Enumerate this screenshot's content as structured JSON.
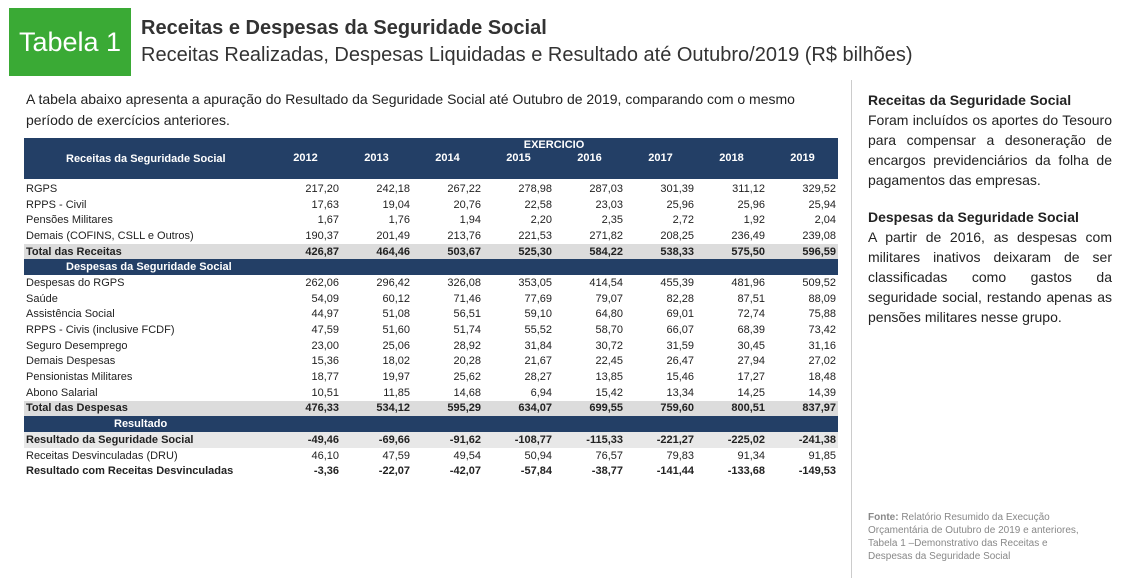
{
  "header": {
    "badge": "Tabela 1",
    "title": "Receitas e Despesas da Seguridade Social",
    "subtitle": "Receitas Realizadas, Despesas Liquidadas e Resultado até Outubro/2019 (R$ bilhões)"
  },
  "intro": "A tabela abaixo apresenta a apuração do Resultado da Seguridade Social até Outubro de 2019, comparando com o mesmo período de exercícios anteriores.",
  "table": {
    "header_label": "Receitas da Seguridade Social",
    "group_label": "EXERCICIO",
    "years": [
      "2012",
      "2013",
      "2014",
      "2015",
      "2016",
      "2017",
      "2018",
      "2019"
    ],
    "sections": [
      {
        "rows": [
          {
            "label": "RGPS",
            "values": [
              "217,20",
              "242,18",
              "267,22",
              "278,98",
              "287,03",
              "301,39",
              "311,12",
              "329,52"
            ]
          },
          {
            "label": "RPPS - Civil",
            "values": [
              "17,63",
              "19,04",
              "20,76",
              "22,58",
              "23,03",
              "25,96",
              "25,96",
              "25,94"
            ]
          },
          {
            "label": "Pensões Militares",
            "values": [
              "1,67",
              "1,76",
              "1,94",
              "2,20",
              "2,35",
              "2,72",
              "1,92",
              "2,04"
            ]
          },
          {
            "label": "Demais (COFINS, CSLL e Outros)",
            "values": [
              "190,37",
              "201,49",
              "213,76",
              "221,53",
              "271,82",
              "208,25",
              "236,49",
              "239,08"
            ]
          }
        ],
        "total": {
          "label": "Total das Receitas",
          "values": [
            "426,87",
            "464,46",
            "503,67",
            "525,30",
            "584,22",
            "538,33",
            "575,50",
            "596,59"
          ]
        }
      },
      {
        "title": "Despesas da Seguridade Social",
        "rows": [
          {
            "label": "Despesas do RGPS",
            "values": [
              "262,06",
              "296,42",
              "326,08",
              "353,05",
              "414,54",
              "455,39",
              "481,96",
              "509,52"
            ]
          },
          {
            "label": "Saúde",
            "values": [
              "54,09",
              "60,12",
              "71,46",
              "77,69",
              "79,07",
              "82,28",
              "87,51",
              "88,09"
            ]
          },
          {
            "label": "Assistência Social",
            "values": [
              "44,97",
              "51,08",
              "56,51",
              "59,10",
              "64,80",
              "69,01",
              "72,74",
              "75,88"
            ]
          },
          {
            "label": "RPPS - Civis (inclusive FCDF)",
            "values": [
              "47,59",
              "51,60",
              "51,74",
              "55,52",
              "58,70",
              "66,07",
              "68,39",
              "73,42"
            ]
          },
          {
            "label": "Seguro Desemprego",
            "values": [
              "23,00",
              "25,06",
              "28,92",
              "31,84",
              "30,72",
              "31,59",
              "30,45",
              "31,16"
            ]
          },
          {
            "label": "Demais Despesas",
            "values": [
              "15,36",
              "18,02",
              "20,28",
              "21,67",
              "22,45",
              "26,47",
              "27,94",
              "27,02"
            ]
          },
          {
            "label": "Pensionistas Militares",
            "values": [
              "18,77",
              "19,97",
              "25,62",
              "28,27",
              "13,85",
              "15,46",
              "17,27",
              "18,48"
            ]
          },
          {
            "label": "Abono Salarial",
            "values": [
              "10,51",
              "11,85",
              "14,68",
              "6,94",
              "15,42",
              "13,34",
              "14,25",
              "14,39"
            ]
          }
        ],
        "total": {
          "label": "Total das Despesas",
          "values": [
            "476,33",
            "534,12",
            "595,29",
            "634,07",
            "699,55",
            "759,60",
            "800,51",
            "837,97"
          ]
        }
      },
      {
        "title": "Resultado",
        "rows": [
          {
            "label": "Resultado da Seguridade Social",
            "values": [
              "-49,46",
              "-69,66",
              "-91,62",
              "-108,77",
              "-115,33",
              "-221,27",
              "-225,02",
              "-241,38"
            ]
          },
          {
            "label": "Receitas Desvinculadas (DRU)",
            "values": [
              "46,10",
              "47,59",
              "49,54",
              "50,94",
              "76,57",
              "79,83",
              "91,34",
              "91,85"
            ]
          },
          {
            "label": "Resultado com Receitas Desvinculadas",
            "values": [
              "-3,36",
              "-22,07",
              "-42,07",
              "-57,84",
              "-38,77",
              "-141,44",
              "-133,68",
              "-149,53"
            ]
          }
        ]
      }
    ]
  },
  "notes": [
    {
      "title": "Receitas da Seguridade Social",
      "text": "Foram incluídos os aportes do Tesouro para compensar a desoneração de encargos previdenciários da folha de pagamentos das empresas."
    },
    {
      "title": "Despesas da Seguridade Social",
      "text": "A partir de 2016, as despesas com militares inativos deixaram de ser classificadas como gastos da seguridade social, restando apenas as pensões militares nesse grupo."
    }
  ],
  "source": {
    "label": "Fonte:",
    "text": "Relatório Resumido da Execução Orçamentária de Outubro de 2019 e anteriores, Tabela 1 –Demonstrativo das Receitas e Despesas da Seguridade Social"
  }
}
